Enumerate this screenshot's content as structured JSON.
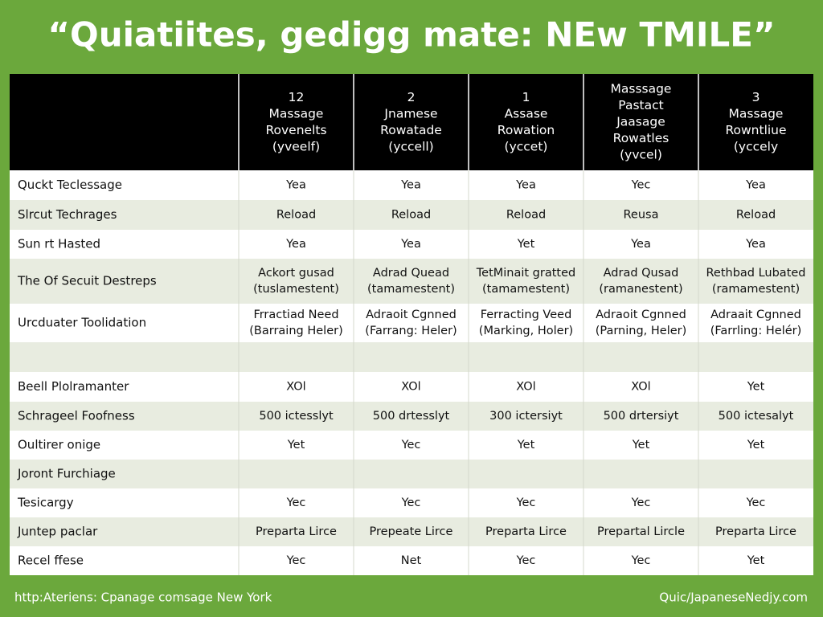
{
  "title": "“Quiatiites, gedigg mate: NEw TMILE”",
  "table": {
    "header": [
      null,
      [
        "12",
        "Massage",
        "Rovenelts",
        "(yveelf)"
      ],
      [
        "2",
        "Jnamese",
        "Rowatade",
        "(yccell)"
      ],
      [
        "1",
        "Assase",
        "Rowation",
        "(yccet)"
      ],
      [
        "Masssage",
        "Pastact",
        "Jaasage",
        "Rowatles",
        "(yvcel)"
      ],
      [
        "3",
        "Massage",
        "Rowntliue",
        "(yccely"
      ]
    ],
    "rows": [
      [
        "Quckt Teclessage",
        "Yea",
        "Yea",
        "Yea",
        "Yec",
        "Yea"
      ],
      [
        "Slrcut Techrages",
        "Reload",
        "Reload",
        "Reload",
        "Reusa",
        "Reload"
      ],
      [
        "Sun rt Hasted",
        "Yea",
        "Yea",
        "Yet",
        "Yea",
        "Yea"
      ],
      [
        "The Of Secuit Destreps",
        [
          "Ackort gusad",
          "(tuslamestent)"
        ],
        [
          "Adrad Quead",
          "(tamamestent)"
        ],
        [
          "TetMinait gratted",
          "(tamamestent)"
        ],
        [
          "Adrad Qusad",
          "(ramanestent)"
        ],
        [
          "Rethbad Lubated",
          "(ramamestent)"
        ]
      ],
      [
        "Urcduater Toolidation",
        [
          "Frractiad Need",
          "(Barraing Heler)"
        ],
        [
          "Adraoit Cgnned",
          "(Farrang: Heler)"
        ],
        [
          "Ferracting Veed",
          "(Marking, Holer)"
        ],
        [
          "Adraoit Cgnned",
          "(Parning, Heler)"
        ],
        [
          "Adraait Cgnned",
          "(Farrling: Helér)"
        ]
      ],
      [
        null,
        null,
        null,
        null,
        null,
        null
      ],
      [
        "Beell Plolramanter",
        "XOl",
        "XOl",
        "XOl",
        "XOl",
        "Yet"
      ],
      [
        "Schrageel Foofness",
        "500 ictesslyt",
        "500 drtesslyt",
        "300 ictersiyt",
        "500 drtersiyt",
        "500 ictesalyt"
      ],
      [
        "Oultirer onige",
        "Yet",
        "Yec",
        "Yet",
        "Yet",
        "Yet"
      ],
      [
        "Joront Furchiage",
        null,
        null,
        null,
        null,
        null
      ],
      [
        "Tesicargy",
        "Yec",
        "Yec",
        "Yec",
        "Yec",
        "Yec"
      ],
      [
        "Juntep paclar",
        "Preparta Lirce",
        "Prepeate Lirce",
        "Preparta Lirce",
        "Prepartal Lircle",
        "Preparta Lirce"
      ],
      [
        "Recel ffese",
        "Yec",
        "Net",
        "Yec",
        "Yec",
        "Yet"
      ]
    ]
  },
  "footer": {
    "left": "http:Ateriens: Cpanage comsage New York",
    "right": "Quic/JapaneseNedjy.com"
  }
}
